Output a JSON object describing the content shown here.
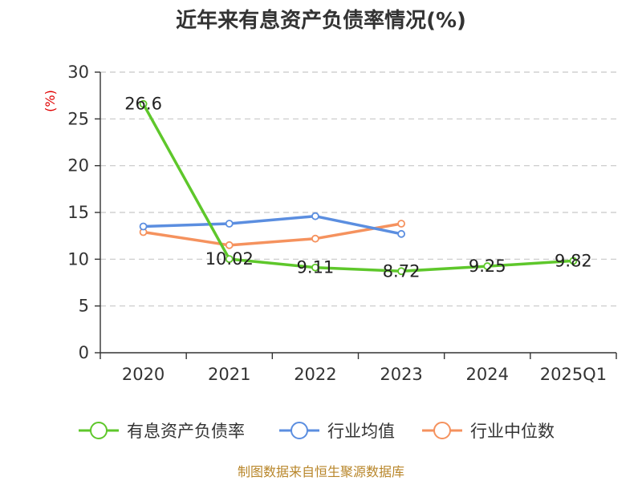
{
  "chart_data": {
    "type": "line",
    "title": "近年来有息资产负债率情况(%)",
    "ylabel": "(%)",
    "xlabel": "",
    "categories": [
      "2020",
      "2021",
      "2022",
      "2023",
      "2024",
      "2025Q1"
    ],
    "ylim": [
      0,
      30
    ],
    "yticks": [
      0,
      5,
      10,
      15,
      20,
      25,
      30
    ],
    "grid": true,
    "legend_position": "bottom",
    "series": [
      {
        "name": "有息资产负债率",
        "color": "#5ec72b",
        "values": [
          26.6,
          10.02,
          9.11,
          8.72,
          9.25,
          9.82
        ],
        "labels": [
          "26.6",
          "10.02",
          "9.11",
          "8.72",
          "9.25",
          "9.82"
        ]
      },
      {
        "name": "行业均值",
        "color": "#5b8ee0",
        "values": [
          13.5,
          13.8,
          14.6,
          12.7,
          null,
          null
        ]
      },
      {
        "name": "行业中位数",
        "color": "#f5925e",
        "values": [
          12.9,
          11.5,
          12.2,
          13.8,
          null,
          null
        ]
      }
    ],
    "source": "制图数据来自恒生聚源数据库"
  }
}
